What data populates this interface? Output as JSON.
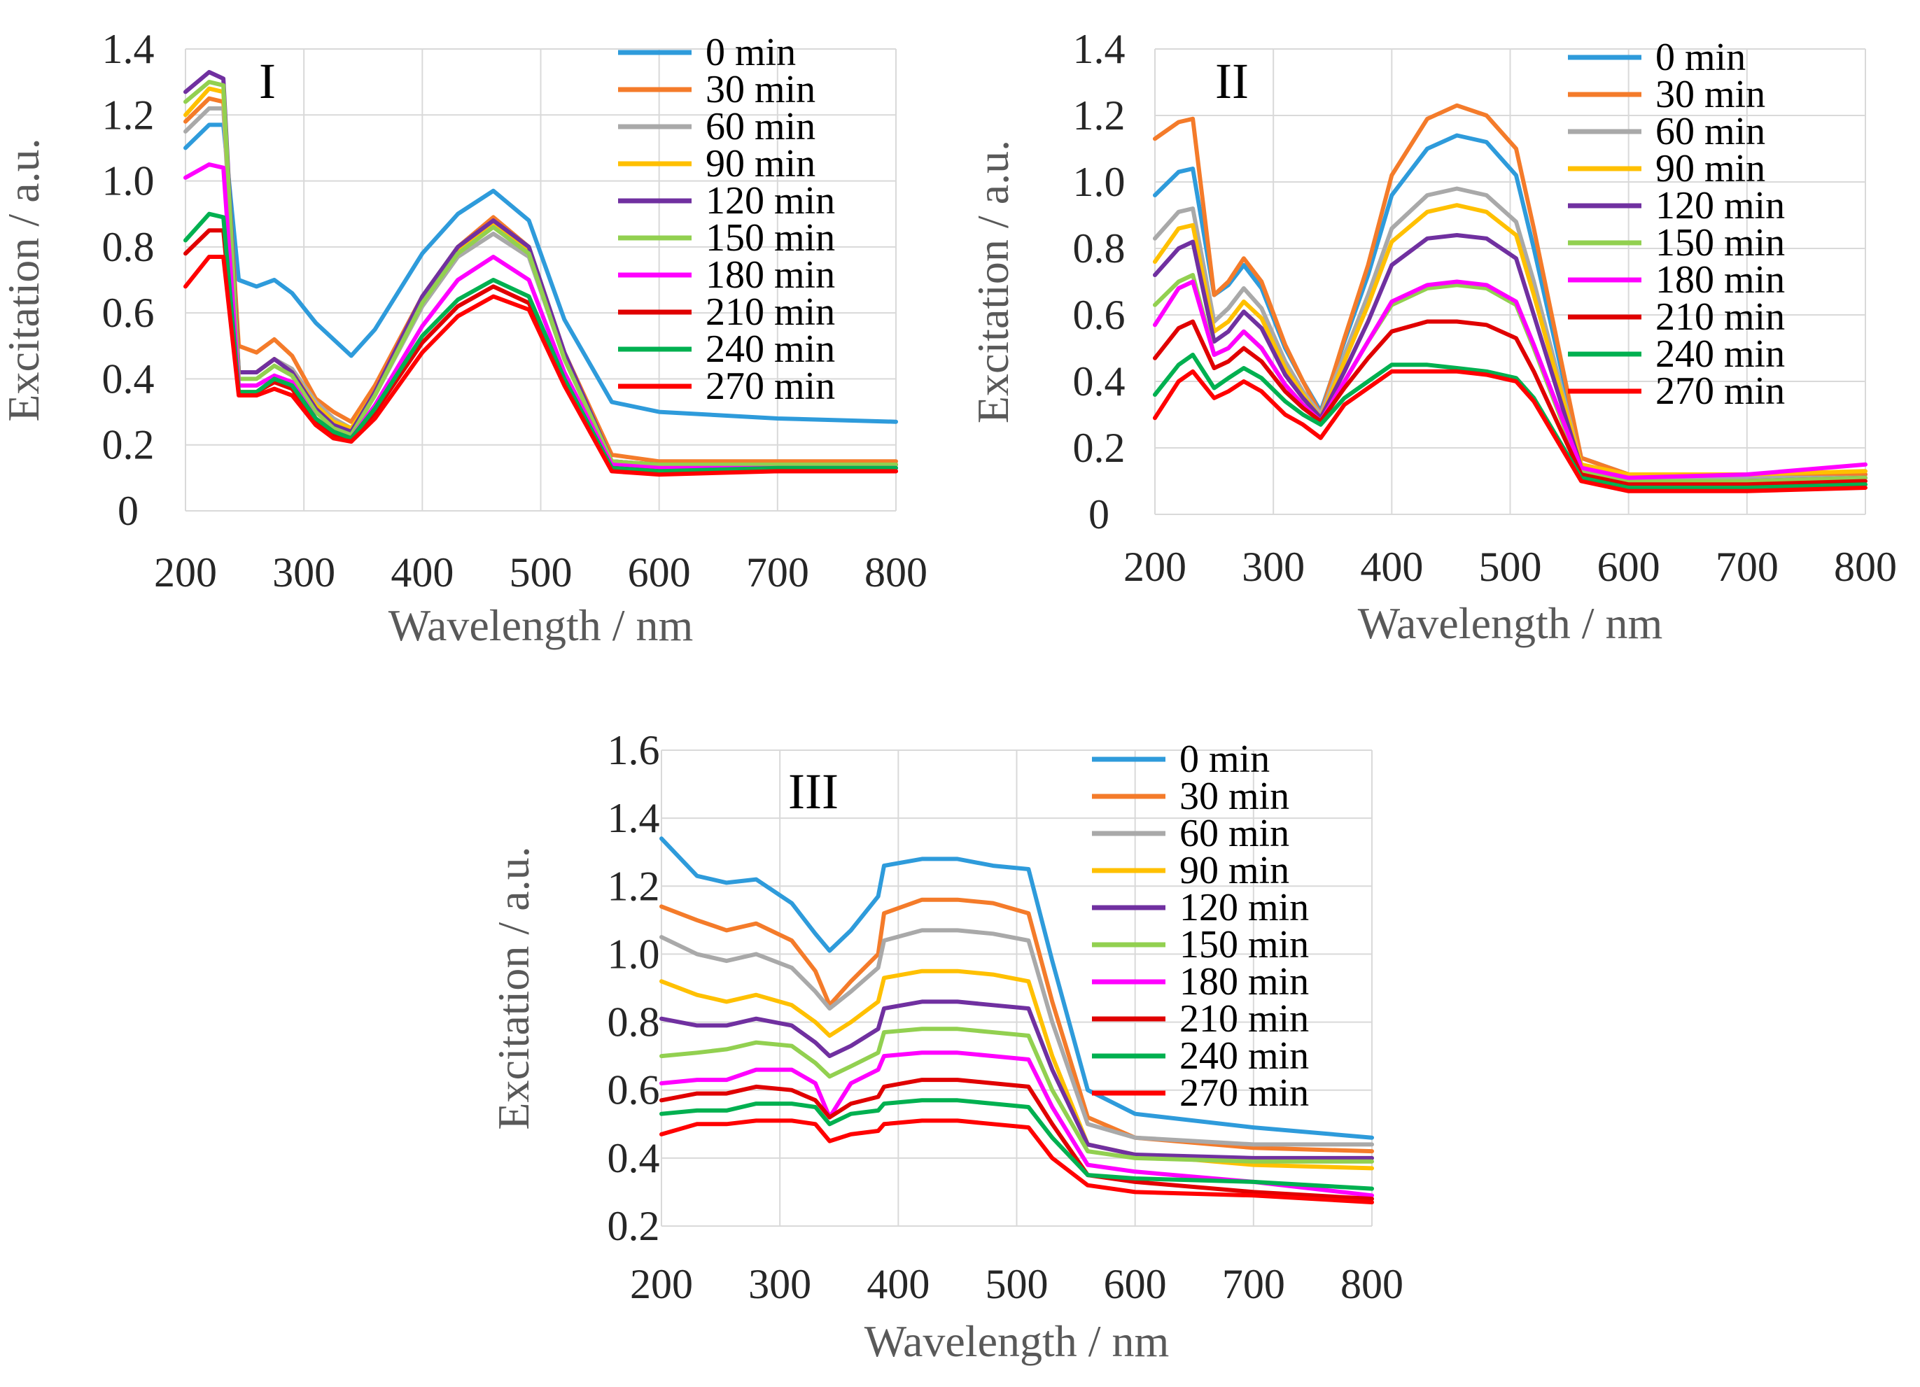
{
  "figure": {
    "legend_labels": [
      "0 min",
      "30 min",
      "60 min",
      "90 min",
      "120 min",
      "150 min",
      "180 min",
      "210 min",
      "240 min",
      "270 min"
    ],
    "legend_colors": [
      "#2E9BDB",
      "#F47B2A",
      "#A9A9A9",
      "#FFC000",
      "#7030A0",
      "#92D050",
      "#FF00FF",
      "#E00000",
      "#00B050",
      "#FF0000"
    ]
  },
  "chart_data": [
    {
      "type": "line",
      "panel_label": "I",
      "xlabel": "Wavelength  / nm",
      "ylabel": "Excitation  / a.u.",
      "xlim": [
        200,
        800
      ],
      "ylim": [
        0,
        1.4
      ],
      "xticks": [
        200,
        300,
        400,
        500,
        600,
        700,
        800
      ],
      "yticks": [
        0,
        0.2,
        0.4,
        0.6,
        0.8,
        1.0,
        1.2,
        1.4
      ],
      "ytick_labels": [
        "0",
        "0.2",
        "0.4",
        "0.6",
        "0.8",
        "1.0",
        "1.2",
        "1.4"
      ],
      "x": [
        200,
        220,
        232,
        245,
        260,
        275,
        290,
        310,
        325,
        340,
        360,
        400,
        430,
        460,
        490,
        520,
        560,
        600,
        700,
        800
      ],
      "series": [
        {
          "name": "0 min",
          "values": [
            1.1,
            1.17,
            1.17,
            0.7,
            0.68,
            0.7,
            0.66,
            0.57,
            0.52,
            0.47,
            0.55,
            0.78,
            0.9,
            0.97,
            0.88,
            0.58,
            0.33,
            0.3,
            0.28,
            0.27
          ]
        },
        {
          "name": "30 min",
          "values": [
            1.18,
            1.25,
            1.24,
            0.5,
            0.48,
            0.52,
            0.47,
            0.34,
            0.3,
            0.27,
            0.38,
            0.65,
            0.8,
            0.89,
            0.8,
            0.48,
            0.17,
            0.15,
            0.15,
            0.15
          ]
        },
        {
          "name": "60 min",
          "values": [
            1.15,
            1.22,
            1.22,
            0.42,
            0.42,
            0.46,
            0.43,
            0.33,
            0.28,
            0.25,
            0.35,
            0.62,
            0.77,
            0.84,
            0.77,
            0.46,
            0.15,
            0.14,
            0.14,
            0.14
          ]
        },
        {
          "name": "90 min",
          "values": [
            1.2,
            1.28,
            1.27,
            0.42,
            0.42,
            0.46,
            0.42,
            0.32,
            0.27,
            0.25,
            0.36,
            0.64,
            0.79,
            0.87,
            0.79,
            0.47,
            0.15,
            0.14,
            0.14,
            0.14
          ]
        },
        {
          "name": "120 min",
          "values": [
            1.27,
            1.33,
            1.31,
            0.42,
            0.42,
            0.46,
            0.42,
            0.31,
            0.26,
            0.24,
            0.36,
            0.65,
            0.8,
            0.88,
            0.8,
            0.48,
            0.15,
            0.14,
            0.14,
            0.14
          ]
        },
        {
          "name": "150 min",
          "values": [
            1.24,
            1.3,
            1.29,
            0.4,
            0.4,
            0.44,
            0.41,
            0.3,
            0.25,
            0.23,
            0.35,
            0.63,
            0.78,
            0.86,
            0.78,
            0.46,
            0.15,
            0.14,
            0.14,
            0.14
          ]
        },
        {
          "name": "180 min",
          "values": [
            1.01,
            1.05,
            1.04,
            0.38,
            0.38,
            0.41,
            0.39,
            0.28,
            0.24,
            0.22,
            0.32,
            0.56,
            0.7,
            0.77,
            0.7,
            0.42,
            0.14,
            0.13,
            0.13,
            0.13
          ]
        },
        {
          "name": "210 min",
          "values": [
            0.78,
            0.85,
            0.85,
            0.36,
            0.36,
            0.39,
            0.37,
            0.27,
            0.23,
            0.21,
            0.3,
            0.51,
            0.62,
            0.68,
            0.63,
            0.39,
            0.13,
            0.12,
            0.12,
            0.12
          ]
        },
        {
          "name": "240 min",
          "values": [
            0.82,
            0.9,
            0.89,
            0.36,
            0.36,
            0.4,
            0.38,
            0.28,
            0.24,
            0.22,
            0.31,
            0.53,
            0.64,
            0.7,
            0.65,
            0.4,
            0.13,
            0.12,
            0.13,
            0.13
          ]
        },
        {
          "name": "270 min",
          "values": [
            0.68,
            0.77,
            0.77,
            0.35,
            0.35,
            0.37,
            0.35,
            0.26,
            0.22,
            0.21,
            0.28,
            0.48,
            0.59,
            0.65,
            0.61,
            0.38,
            0.12,
            0.11,
            0.12,
            0.12
          ]
        }
      ]
    },
    {
      "type": "line",
      "panel_label": "II",
      "xlabel": "Wavelength  / nm",
      "ylabel": "Excitation  / a.u.",
      "xlim": [
        200,
        800
      ],
      "ylim": [
        0,
        1.4
      ],
      "xticks": [
        200,
        300,
        400,
        500,
        600,
        700,
        800
      ],
      "yticks": [
        0,
        0.2,
        0.4,
        0.6,
        0.8,
        1.0,
        1.2,
        1.4
      ],
      "ytick_labels": [
        "0",
        "0.2",
        "0.4",
        "0.6",
        "0.8",
        "1.0",
        "1.2",
        "1.4"
      ],
      "x": [
        200,
        220,
        232,
        250,
        262,
        275,
        290,
        310,
        325,
        340,
        360,
        380,
        400,
        430,
        455,
        480,
        505,
        520,
        560,
        600,
        700,
        800
      ],
      "series": [
        {
          "name": "0 min",
          "values": [
            0.96,
            1.03,
            1.04,
            0.66,
            0.69,
            0.75,
            0.68,
            0.5,
            0.4,
            0.31,
            0.52,
            0.72,
            0.96,
            1.1,
            1.14,
            1.12,
            1.02,
            0.8,
            0.17,
            0.12,
            0.12,
            0.12
          ]
        },
        {
          "name": "30 min",
          "values": [
            1.13,
            1.18,
            1.19,
            0.66,
            0.7,
            0.77,
            0.7,
            0.51,
            0.4,
            0.3,
            0.53,
            0.75,
            1.02,
            1.19,
            1.23,
            1.2,
            1.1,
            0.86,
            0.17,
            0.12,
            0.12,
            0.12
          ]
        },
        {
          "name": "60 min",
          "values": [
            0.83,
            0.91,
            0.92,
            0.58,
            0.62,
            0.68,
            0.62,
            0.46,
            0.37,
            0.3,
            0.48,
            0.66,
            0.86,
            0.96,
            0.98,
            0.96,
            0.88,
            0.7,
            0.15,
            0.11,
            0.11,
            0.11
          ]
        },
        {
          "name": "90 min",
          "values": [
            0.76,
            0.86,
            0.87,
            0.55,
            0.58,
            0.64,
            0.59,
            0.44,
            0.36,
            0.29,
            0.46,
            0.63,
            0.82,
            0.91,
            0.93,
            0.91,
            0.84,
            0.66,
            0.15,
            0.12,
            0.12,
            0.13
          ]
        },
        {
          "name": "120 min",
          "values": [
            0.72,
            0.8,
            0.82,
            0.52,
            0.55,
            0.61,
            0.56,
            0.42,
            0.35,
            0.29,
            0.43,
            0.58,
            0.75,
            0.83,
            0.84,
            0.83,
            0.77,
            0.6,
            0.14,
            0.1,
            0.1,
            0.11
          ]
        },
        {
          "name": "150 min",
          "values": [
            0.63,
            0.7,
            0.72,
            0.48,
            0.5,
            0.55,
            0.5,
            0.39,
            0.33,
            0.28,
            0.4,
            0.52,
            0.63,
            0.68,
            0.69,
            0.68,
            0.63,
            0.5,
            0.13,
            0.1,
            0.1,
            0.11
          ]
        },
        {
          "name": "180 min",
          "values": [
            0.57,
            0.68,
            0.7,
            0.48,
            0.5,
            0.55,
            0.5,
            0.39,
            0.33,
            0.28,
            0.4,
            0.52,
            0.64,
            0.69,
            0.7,
            0.69,
            0.64,
            0.51,
            0.14,
            0.11,
            0.12,
            0.15
          ]
        },
        {
          "name": "210 min",
          "values": [
            0.47,
            0.56,
            0.58,
            0.44,
            0.46,
            0.5,
            0.46,
            0.37,
            0.32,
            0.28,
            0.38,
            0.47,
            0.55,
            0.58,
            0.58,
            0.57,
            0.53,
            0.43,
            0.12,
            0.09,
            0.09,
            0.1
          ]
        },
        {
          "name": "240 min",
          "values": [
            0.36,
            0.45,
            0.48,
            0.38,
            0.41,
            0.44,
            0.41,
            0.34,
            0.3,
            0.27,
            0.35,
            0.4,
            0.45,
            0.45,
            0.44,
            0.43,
            0.41,
            0.35,
            0.11,
            0.08,
            0.08,
            0.09
          ]
        },
        {
          "name": "270 min",
          "values": [
            0.29,
            0.4,
            0.43,
            0.35,
            0.37,
            0.4,
            0.37,
            0.3,
            0.27,
            0.23,
            0.33,
            0.38,
            0.43,
            0.43,
            0.43,
            0.42,
            0.4,
            0.34,
            0.1,
            0.07,
            0.07,
            0.08
          ]
        }
      ]
    },
    {
      "type": "line",
      "panel_label": "III",
      "xlabel": "Wavelength  / nm",
      "ylabel": "Excitation  / a.u.",
      "xlim": [
        200,
        800
      ],
      "ylim": [
        0.2,
        1.6
      ],
      "xticks": [
        200,
        300,
        400,
        500,
        600,
        700,
        800
      ],
      "yticks": [
        0.2,
        0.4,
        0.6,
        0.8,
        1.0,
        1.2,
        1.4,
        1.6
      ],
      "ytick_labels": [
        "0.2",
        "0.4",
        "0.6",
        "0.8",
        "1.0",
        "1.2",
        "1.4",
        "1.6"
      ],
      "x": [
        200,
        230,
        255,
        280,
        310,
        330,
        342,
        360,
        383,
        388,
        420,
        450,
        480,
        510,
        530,
        560,
        600,
        700,
        800
      ],
      "series": [
        {
          "name": "0 min",
          "values": [
            1.34,
            1.23,
            1.21,
            1.22,
            1.15,
            1.06,
            1.01,
            1.07,
            1.17,
            1.26,
            1.28,
            1.28,
            1.26,
            1.25,
            0.98,
            0.6,
            0.53,
            0.49,
            0.46
          ]
        },
        {
          "name": "30 min",
          "values": [
            1.14,
            1.1,
            1.07,
            1.09,
            1.04,
            0.95,
            0.85,
            0.92,
            1.0,
            1.12,
            1.16,
            1.16,
            1.15,
            1.12,
            0.86,
            0.52,
            0.46,
            0.43,
            0.42
          ]
        },
        {
          "name": "60 min",
          "values": [
            1.05,
            1.0,
            0.98,
            1.0,
            0.96,
            0.89,
            0.84,
            0.89,
            0.96,
            1.04,
            1.07,
            1.07,
            1.06,
            1.04,
            0.8,
            0.5,
            0.46,
            0.44,
            0.44
          ]
        },
        {
          "name": "90 min",
          "values": [
            0.92,
            0.88,
            0.86,
            0.88,
            0.85,
            0.8,
            0.76,
            0.8,
            0.86,
            0.93,
            0.95,
            0.95,
            0.94,
            0.92,
            0.7,
            0.44,
            0.41,
            0.38,
            0.37
          ]
        },
        {
          "name": "120 min",
          "values": [
            0.81,
            0.79,
            0.79,
            0.81,
            0.79,
            0.74,
            0.7,
            0.73,
            0.78,
            0.84,
            0.86,
            0.86,
            0.85,
            0.84,
            0.66,
            0.44,
            0.41,
            0.4,
            0.4
          ]
        },
        {
          "name": "150 min",
          "values": [
            0.7,
            0.71,
            0.72,
            0.74,
            0.73,
            0.68,
            0.64,
            0.67,
            0.71,
            0.77,
            0.78,
            0.78,
            0.77,
            0.76,
            0.6,
            0.42,
            0.4,
            0.39,
            0.39
          ]
        },
        {
          "name": "180 min",
          "values": [
            0.62,
            0.63,
            0.63,
            0.66,
            0.66,
            0.62,
            0.52,
            0.62,
            0.66,
            0.7,
            0.71,
            0.71,
            0.7,
            0.69,
            0.55,
            0.38,
            0.36,
            0.33,
            0.29
          ]
        },
        {
          "name": "210 min",
          "values": [
            0.57,
            0.59,
            0.59,
            0.61,
            0.6,
            0.57,
            0.52,
            0.56,
            0.58,
            0.61,
            0.63,
            0.63,
            0.62,
            0.61,
            0.5,
            0.35,
            0.33,
            0.3,
            0.28
          ]
        },
        {
          "name": "240 min",
          "values": [
            0.53,
            0.54,
            0.54,
            0.56,
            0.56,
            0.55,
            0.5,
            0.53,
            0.54,
            0.56,
            0.57,
            0.57,
            0.56,
            0.55,
            0.46,
            0.35,
            0.34,
            0.33,
            0.31
          ]
        },
        {
          "name": "270 min",
          "values": [
            0.47,
            0.5,
            0.5,
            0.51,
            0.51,
            0.5,
            0.45,
            0.47,
            0.48,
            0.5,
            0.51,
            0.51,
            0.5,
            0.49,
            0.4,
            0.32,
            0.3,
            0.29,
            0.27
          ]
        }
      ]
    }
  ]
}
